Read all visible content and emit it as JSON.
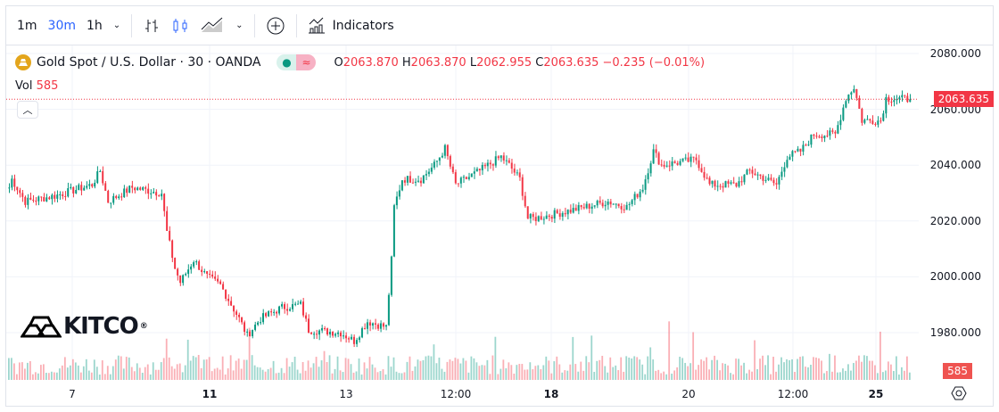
{
  "toolbar": {
    "intervals": [
      "1m",
      "30m",
      "1h"
    ],
    "active_interval": "30m",
    "indicators_label": "Indicators"
  },
  "legend": {
    "symbol": "Gold Spot / U.S. Dollar · 30 · OANDA",
    "open_label": "O",
    "open": "2063.870",
    "high_label": "H",
    "high": "2063.870",
    "low_label": "L",
    "low": "2062.955",
    "close_label": "C",
    "close": "2063.635",
    "change": "−0.235 (−0.01%)",
    "vol_label": "Vol",
    "vol": "585"
  },
  "logo": {
    "text": "KITCO"
  },
  "colors": {
    "up": "#089981",
    "down": "#f23645",
    "accent": "#2962ff"
  },
  "chart_data": {
    "type": "candlestick",
    "y_ticks": [
      "2080.000",
      "2060.000",
      "2040.000",
      "2020.000",
      "2000.000",
      "1980.000"
    ],
    "ylim": [
      1967,
      2082
    ],
    "x_ticks": [
      {
        "label": "7",
        "bold": false
      },
      {
        "label": "11",
        "bold": true
      },
      {
        "label": "13",
        "bold": false
      },
      {
        "label": "12:00",
        "bold": false
      },
      {
        "label": "18",
        "bold": true
      },
      {
        "label": "20",
        "bold": false
      },
      {
        "label": "12:00",
        "bold": false
      },
      {
        "label": "25",
        "bold": true
      }
    ],
    "last_price": "2063.635",
    "last_volume": "585",
    "close_path": [
      [
        0,
        2032
      ],
      [
        1,
        2035
      ],
      [
        6,
        2027
      ],
      [
        17,
        2029
      ],
      [
        31,
        2033
      ],
      [
        34,
        2038
      ],
      [
        37,
        2027
      ],
      [
        46,
        2032
      ],
      [
        57,
        2030
      ],
      [
        59,
        2016
      ],
      [
        62,
        2003
      ],
      [
        64,
        1998
      ],
      [
        69,
        2006
      ],
      [
        74,
        2000
      ],
      [
        79,
        1997
      ],
      [
        86,
        1985
      ],
      [
        89,
        1979
      ],
      [
        94,
        1985
      ],
      [
        102,
        1989
      ],
      [
        109,
        1990
      ],
      [
        112,
        1981
      ],
      [
        124,
        1980
      ],
      [
        129,
        1977
      ],
      [
        134,
        1984
      ],
      [
        141,
        1982
      ],
      [
        143,
        2006
      ],
      [
        144,
        2025
      ],
      [
        147,
        2035
      ],
      [
        154,
        2035
      ],
      [
        159,
        2040
      ],
      [
        163,
        2046
      ],
      [
        167,
        2033
      ],
      [
        176,
        2038
      ],
      [
        184,
        2043
      ],
      [
        187,
        2040
      ],
      [
        191,
        2035
      ],
      [
        194,
        2021
      ],
      [
        197,
        2021
      ],
      [
        211,
        2024
      ],
      [
        224,
        2027
      ],
      [
        231,
        2025
      ],
      [
        237,
        2032
      ],
      [
        241,
        2045
      ],
      [
        244,
        2040
      ],
      [
        257,
        2042
      ],
      [
        262,
        2033
      ],
      [
        272,
        2033
      ],
      [
        277,
        2038
      ],
      [
        287,
        2033
      ],
      [
        291,
        2043
      ],
      [
        296,
        2045
      ],
      [
        301,
        2051
      ],
      [
        309,
        2051
      ],
      [
        313,
        2064
      ],
      [
        316,
        2068
      ],
      [
        319,
        2056
      ],
      [
        326,
        2056
      ],
      [
        328,
        2064
      ],
      [
        337,
        2063.6
      ]
    ]
  }
}
